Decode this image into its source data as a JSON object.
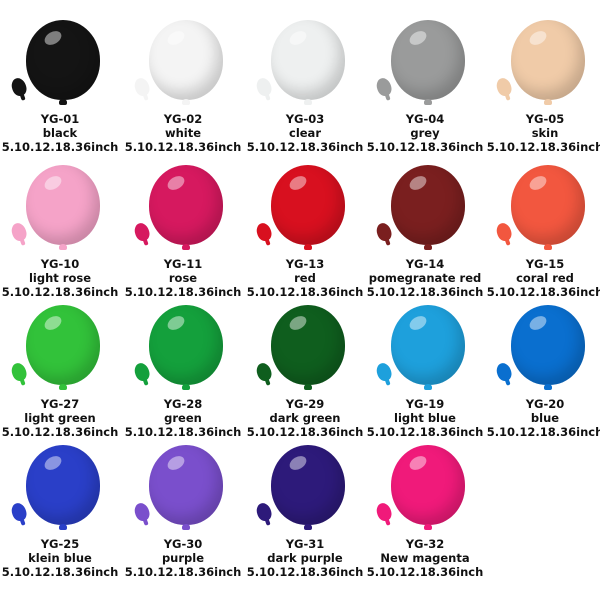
{
  "items": [
    {
      "code": "YG-01",
      "name": "black",
      "sizes": "5.10.12.18.36inch",
      "color": "#141414"
    },
    {
      "code": "YG-02",
      "name": "white",
      "sizes": "5.10.12.18.36inch",
      "color": "#f4f4f4"
    },
    {
      "code": "YG-03",
      "name": "clear",
      "sizes": "5.10.12.18.36inch",
      "color": "#eef0f0"
    },
    {
      "code": "YG-04",
      "name": "grey",
      "sizes": "5.10.12.18.36inch",
      "color": "#9a9b9b"
    },
    {
      "code": "YG-05",
      "name": "skin",
      "sizes": "5.10.12.18.36inch",
      "color": "#f0cba8"
    },
    {
      "code": "YG-10",
      "name": "light rose",
      "sizes": "5.10.12.18.36inch",
      "color": "#f5a3c8"
    },
    {
      "code": "YG-11",
      "name": "rose",
      "sizes": "5.10.12.18.36inch",
      "color": "#d6195f"
    },
    {
      "code": "YG-13",
      "name": "red",
      "sizes": "5.10.12.18.36inch",
      "color": "#d8101f"
    },
    {
      "code": "YG-14",
      "name": "pomegranate red",
      "sizes": "5.10.12.18.36inch",
      "color": "#7a1f1f"
    },
    {
      "code": "YG-15",
      "name": "coral red",
      "sizes": "5.10.12.18.36inch",
      "color": "#f2573f"
    },
    {
      "code": "YG-27",
      "name": "light green",
      "sizes": "5.10.12.18.36inch",
      "color": "#32c23a"
    },
    {
      "code": "YG-28",
      "name": "green",
      "sizes": "5.10.12.18.36inch",
      "color": "#14a03c"
    },
    {
      "code": "YG-29",
      "name": "dark green",
      "sizes": "5.10.12.18.36inch",
      "color": "#0f5e1e"
    },
    {
      "code": "YG-19",
      "name": "light blue",
      "sizes": "5.10.12.18.36inch",
      "color": "#1ea0dc"
    },
    {
      "code": "YG-20",
      "name": "blue",
      "sizes": "5.10.12.18.36inch",
      "color": "#0a6fcf"
    },
    {
      "code": "YG-25",
      "name": "klein blue",
      "sizes": "5.10.12.18.36inch",
      "color": "#2a3fc8"
    },
    {
      "code": "YG-30",
      "name": "purple",
      "sizes": "5.10.12.18.36inch",
      "color": "#7a4fcc"
    },
    {
      "code": "YG-31",
      "name": "dark purple",
      "sizes": "5.10.12.18.36inch",
      "color": "#2d1a7a"
    },
    {
      "code": "YG-32",
      "name": "New magenta",
      "sizes": "5.10.12.18.36inch",
      "color": "#f01a7a"
    }
  ]
}
